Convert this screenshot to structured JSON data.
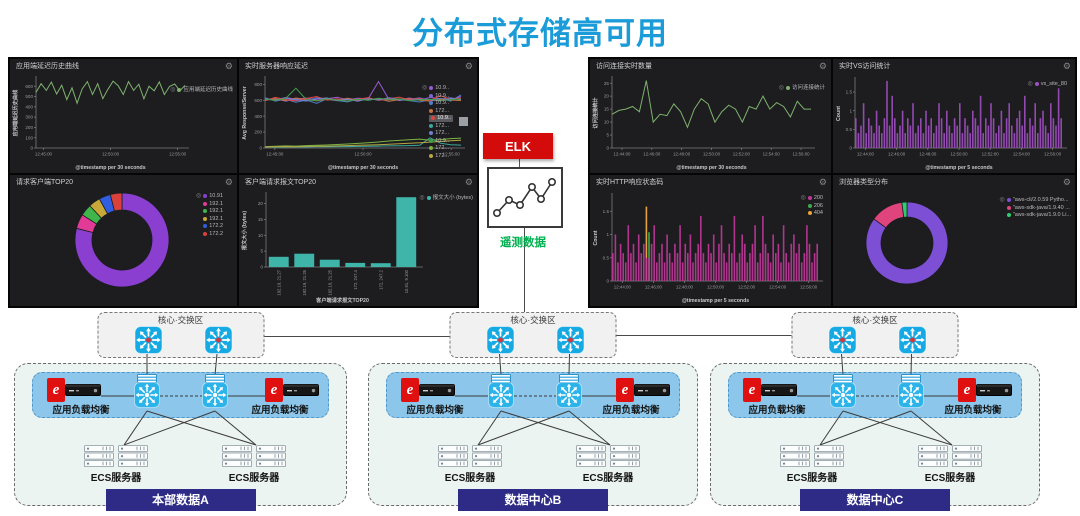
{
  "page": {
    "title": "分布式存储高可用"
  },
  "icons": {
    "gear": "⚙",
    "legend_toggle": "◎"
  },
  "colors": {
    "title": "#1b9cd8",
    "elk_red": "#d40b0b",
    "telemetry_green": "#00b050",
    "dc_label_bg": "#2d2b85",
    "band_blue": "#8cc6ea",
    "switch_blue": "#16aae4",
    "panel_bg": "#1d1d20",
    "green_line": "#7eb26d",
    "teal_bar": "#3fb5aa"
  },
  "elk": {
    "label": "ELK",
    "caption": "遥测数据"
  },
  "topology": {
    "core_label": "核心·交换区",
    "lb_label": "应用负载均衡",
    "ecs_label": "ECS服务器",
    "datacenters": [
      {
        "name": "本部数据A"
      },
      {
        "name": "数据中心B"
      },
      {
        "name": "数据中心C"
      }
    ]
  },
  "chart_data": [
    {
      "id": "app-latency-history",
      "type": "line",
      "title": "应用端延迟历史曲线",
      "ylabel": "应用端延迟历史曲线",
      "xlabel": "@timestamp per 30 seconds",
      "ylim": [
        0,
        680
      ],
      "yticks": [
        0,
        100,
        200,
        300,
        400,
        500,
        600
      ],
      "xticks": [
        "12:45:00",
        "12:50:00",
        "12:55:00"
      ],
      "legend": [
        {
          "label": "应用端延迟历史曲线",
          "color": "#7eb26d"
        }
      ],
      "series": [
        {
          "name": "应用端延迟历史曲线",
          "color": "#7eb26d",
          "values": [
            540,
            625,
            560,
            640,
            525,
            610,
            470,
            585,
            435,
            575,
            645,
            520,
            625,
            480,
            570,
            650,
            605,
            520,
            645,
            560,
            620,
            478,
            600,
            556,
            642,
            520,
            598,
            622,
            556,
            608
          ]
        }
      ]
    },
    {
      "id": "realtime-server-latency",
      "type": "line",
      "title": "实时服务器响应延迟",
      "ylabel": "Avg Response/Server",
      "xlabel": "@timestamp per 30 seconds",
      "ylim": [
        0,
        880
      ],
      "yticks": [
        0,
        200,
        400,
        600,
        800
      ],
      "xticks": [
        "12:45:00",
        "12:50:00",
        "12:55:00"
      ],
      "legend": [
        {
          "label": "10.9..",
          "color": "#9a59cf"
        },
        {
          "label": "10.9..",
          "color": "#7b68c9"
        },
        {
          "label": "10.9..",
          "color": "#4f7dc9"
        },
        {
          "label": "172...",
          "color": "#c9713d"
        },
        {
          "label": "10.9..",
          "color": "#e0453e",
          "highlight": true
        },
        {
          "label": "172...",
          "color": "#39a89f"
        },
        {
          "label": "172...",
          "color": "#6f7fd0"
        },
        {
          "label": "10.9..",
          "color": "#3f9e4d"
        },
        {
          "label": "172...",
          "color": "#7cb342"
        },
        {
          "label": "172...",
          "color": "#b5a642"
        }
      ],
      "series": [
        {
          "name": "10.9..",
          "color": "#9a59cf",
          "values": [
            615,
            605,
            635,
            612,
            628,
            604,
            618,
            638,
            606,
            626,
            618,
            835,
            612,
            606,
            628,
            602,
            636,
            618,
            604,
            648
          ]
        },
        {
          "name": "10.9..",
          "color": "#7b68c9",
          "values": [
            598,
            622,
            588,
            618,
            600,
            632,
            610,
            596,
            624,
            608,
            618,
            604,
            626,
            596,
            612,
            630,
            598,
            616,
            632,
            606
          ]
        },
        {
          "name": "10.9..",
          "color": "#4f7dc9",
          "values": [
            632,
            590,
            612,
            576,
            604,
            562,
            618,
            596,
            580,
            612,
            600,
            622,
            586,
            610,
            596,
            578,
            608,
            624,
            590,
            668
          ]
        },
        {
          "name": "172...",
          "color": "#c9713d",
          "values": [
            606,
            618,
            596,
            628,
            610,
            592,
            614,
            602,
            626,
            598,
            612,
            620,
            590,
            606,
            618,
            600,
            590,
            612,
            604,
            596
          ]
        },
        {
          "name": "10.9..",
          "color": "#e0453e",
          "values": [
            596,
            636,
            608,
            592,
            622,
            648,
            602,
            618,
            590,
            612,
            634,
            598,
            616,
            640,
            606,
            622,
            596,
            658,
            612,
            628
          ]
        },
        {
          "name": "172...",
          "color": "#39a89f",
          "values": [
            10,
            12,
            11,
            14,
            13,
            16,
            15,
            18,
            17,
            20,
            22,
            24,
            26,
            28,
            30,
            34,
            128,
            60,
            40,
            36
          ]
        },
        {
          "name": "172...",
          "color": "#6f7fd0",
          "values": [
            620,
            598,
            626,
            606,
            590,
            618,
            630,
            596,
            612,
            588,
            620,
            604,
            632,
            612,
            598,
            614,
            606,
            592,
            622,
            610
          ]
        },
        {
          "name": "10.9..",
          "color": "#3f9e4d",
          "values": [
            612,
            600,
            622,
            752,
            608,
            596,
            618,
            604,
            590,
            614,
            600,
            626,
            608,
            618,
            596,
            606,
            614,
            598,
            608,
            616
          ]
        },
        {
          "name": "172...",
          "color": "#7cb342",
          "values": [
            18,
            22,
            26,
            24,
            30,
            34,
            38,
            44,
            50,
            58,
            66,
            76,
            88,
            96,
            104,
            112,
            98,
            106,
            118,
            124
          ]
        },
        {
          "name": "172...",
          "color": "#b5a642",
          "values": [
            12,
            15,
            18,
            16,
            20,
            24,
            22,
            26,
            30,
            34,
            38,
            42,
            48,
            54,
            60,
            66,
            74,
            82,
            90,
            98
          ]
        }
      ]
    },
    {
      "id": "request-clients-top20",
      "type": "donut",
      "title": "请求客户端TOP20",
      "slices": [
        {
          "label": "10.91",
          "color": "#8a3fd1",
          "value": 79
        },
        {
          "label": "192.1",
          "color": "#e23a97",
          "value": 5
        },
        {
          "label": "192.1",
          "color": "#3fb54a",
          "value": 4
        },
        {
          "label": "192.1",
          "color": "#c9a83a",
          "value": 4
        },
        {
          "label": "172.2",
          "color": "#2f5fe0",
          "value": 4
        },
        {
          "label": "172.2",
          "color": "#d9413a",
          "value": 4
        }
      ]
    },
    {
      "id": "client-request-bytes-top20",
      "type": "bar",
      "title": "客户端请求报文TOP20",
      "ylabel": "报文大小 (bytes)",
      "xlabel": "客户端请求报文TOP20",
      "ylim": [
        0,
        23
      ],
      "yticks": [
        0,
        5,
        10,
        15,
        20
      ],
      "categories": [
        "192.19, 21.27",
        "192.19, 21.26",
        "192.19, 21.25",
        "172, 247.4",
        "172, 247.2",
        "10.91, 9.100"
      ],
      "values": [
        3.2,
        4.2,
        2.3,
        1.3,
        1.2,
        22
      ],
      "bar_color": "#3fb5aa",
      "legend": [
        {
          "label": "报文大小 (bytes)",
          "color": "#3fb5aa"
        }
      ]
    },
    {
      "id": "realtime-connections",
      "type": "line",
      "title": "访问连接实时数量",
      "ylabel": "访问连接统计",
      "xlabel": "@timestamp per 30 seconds",
      "ylim": [
        0,
        27
      ],
      "yticks": [
        0,
        5,
        10,
        15,
        20,
        25
      ],
      "xticks": [
        "12:44:00",
        "12:46:00",
        "12:48:00",
        "12:50:00",
        "12:52:00",
        "12:54:00",
        "12:56:00"
      ],
      "legend": [
        {
          "label": "访问连接统计",
          "color": "#7eb26d"
        }
      ],
      "series": [
        {
          "name": "访问连接统计",
          "color": "#7eb26d",
          "values": [
            13,
            14.5,
            15,
            16,
            14,
            26,
            10,
            13,
            12.5,
            17,
            14,
            8,
            15,
            19,
            17,
            10,
            14,
            16.5,
            15,
            10,
            16,
            15,
            20,
            15,
            17.5,
            16,
            12,
            18,
            15,
            15
          ]
        }
      ]
    },
    {
      "id": "realtime-vs-visits",
      "type": "bars",
      "title": "实时VS访问统计",
      "ylabel": "Count",
      "xlabel": "@timestamp per 5 seconds",
      "ylim": [
        0,
        1.85
      ],
      "yticks": [
        0,
        0.5,
        1,
        1.5
      ],
      "xticks": [
        "12:44:00",
        "12:46:00",
        "12:48:00",
        "12:50:00",
        "12:52:00",
        "12:54:00",
        "12:56:00"
      ],
      "legend": [
        {
          "label": "vs_site_80",
          "color": "#a04fc0"
        }
      ],
      "color": "#a04fc0",
      "values": [
        0.8,
        0.4,
        0.6,
        1.2,
        0.4,
        0.8,
        0.6,
        0.4,
        1.0,
        0.6,
        0.4,
        0.8,
        1.8,
        0.6,
        1.4,
        0.8,
        0.4,
        0.6,
        1.0,
        0.4,
        0.8,
        0.6,
        1.2,
        0.4,
        0.6,
        0.8,
        0.4,
        1.0,
        0.6,
        0.8,
        0.4,
        0.6,
        1.2,
        0.8,
        0.4,
        1.0,
        0.6,
        0.4,
        0.8,
        0.6,
        1.2,
        0.4,
        0.8,
        0.6,
        0.4,
        1.0,
        0.8,
        0.6,
        1.4,
        0.4,
        0.8,
        0.6,
        1.2,
        0.8,
        0.4,
        0.6,
        1.0,
        0.4,
        0.8,
        1.2,
        0.6,
        0.4,
        0.8,
        1.0,
        0.6,
        1.4,
        0.4,
        0.8,
        0.6,
        1.2,
        0.4,
        0.8,
        1.0,
        0.6,
        0.4,
        1.2,
        0.8,
        0.6,
        1.6,
        0.8
      ],
      "spikes": []
    },
    {
      "id": "realtime-http-status",
      "type": "bars",
      "title": "实时HTTP响应状态码",
      "ylabel": "Count",
      "xlabel": "@timestamp per 5 seconds",
      "ylim": [
        0,
        1.85
      ],
      "yticks": [
        0,
        0.5,
        1,
        1.5
      ],
      "xticks": [
        "12:44:00",
        "12:46:00",
        "12:48:00",
        "12:50:00",
        "12:52:00",
        "12:54:00",
        "12:56:00"
      ],
      "legend": [
        {
          "label": "200",
          "color": "#c2399b"
        },
        {
          "label": "206",
          "color": "#3fa84a"
        },
        {
          "label": "404",
          "color": "#e8a33d"
        }
      ],
      "color": "#c2399b",
      "values": [
        0.6,
        1.0,
        0.4,
        0.8,
        0.6,
        0.4,
        1.2,
        0.6,
        0.8,
        0.4,
        1.0,
        0.6,
        0.8,
        0.5,
        0.5,
        0.8,
        1.2,
        0.4,
        0.6,
        0.8,
        0.4,
        1.0,
        0.6,
        0.4,
        0.8,
        0.6,
        1.2,
        0.4,
        0.8,
        0.6,
        1.0,
        0.4,
        0.6,
        0.8,
        1.4,
        0.6,
        0.4,
        0.8,
        0.6,
        1.0,
        0.4,
        0.8,
        1.2,
        0.6,
        0.4,
        0.8,
        0.6,
        1.4,
        0.4,
        0.6,
        1.0,
        0.8,
        0.4,
        0.6,
        0.8,
        1.2,
        0.4,
        0.6,
        1.4,
        0.8,
        0.6,
        0.4,
        1.0,
        0.6,
        0.8,
        0.4,
        1.2,
        0.6,
        0.4,
        0.8,
        1.0,
        0.6,
        0.8,
        0.4,
        0.6,
        1.2,
        0.8,
        0.4,
        0.6,
        0.8
      ],
      "spikes": [
        {
          "index": 13,
          "value": 1.6,
          "color": "#e8a33d"
        },
        {
          "index": 14,
          "value": 1.05,
          "color": "#3fa84a"
        }
      ]
    },
    {
      "id": "browser-type-distribution",
      "type": "donut",
      "title": "浏览器类型分布",
      "slices": [
        {
          "label": "\"aws-cli/2.0.59 Pytho...",
          "color": "#7c4fd5",
          "value": 85
        },
        {
          "label": "\"aws-sdk-java/1.9.40 ...",
          "color": "#e0447c",
          "value": 13
        },
        {
          "label": "\"aws-sdk-java/1.9.0 Li...",
          "color": "#2ecc71",
          "value": 2
        }
      ]
    }
  ]
}
